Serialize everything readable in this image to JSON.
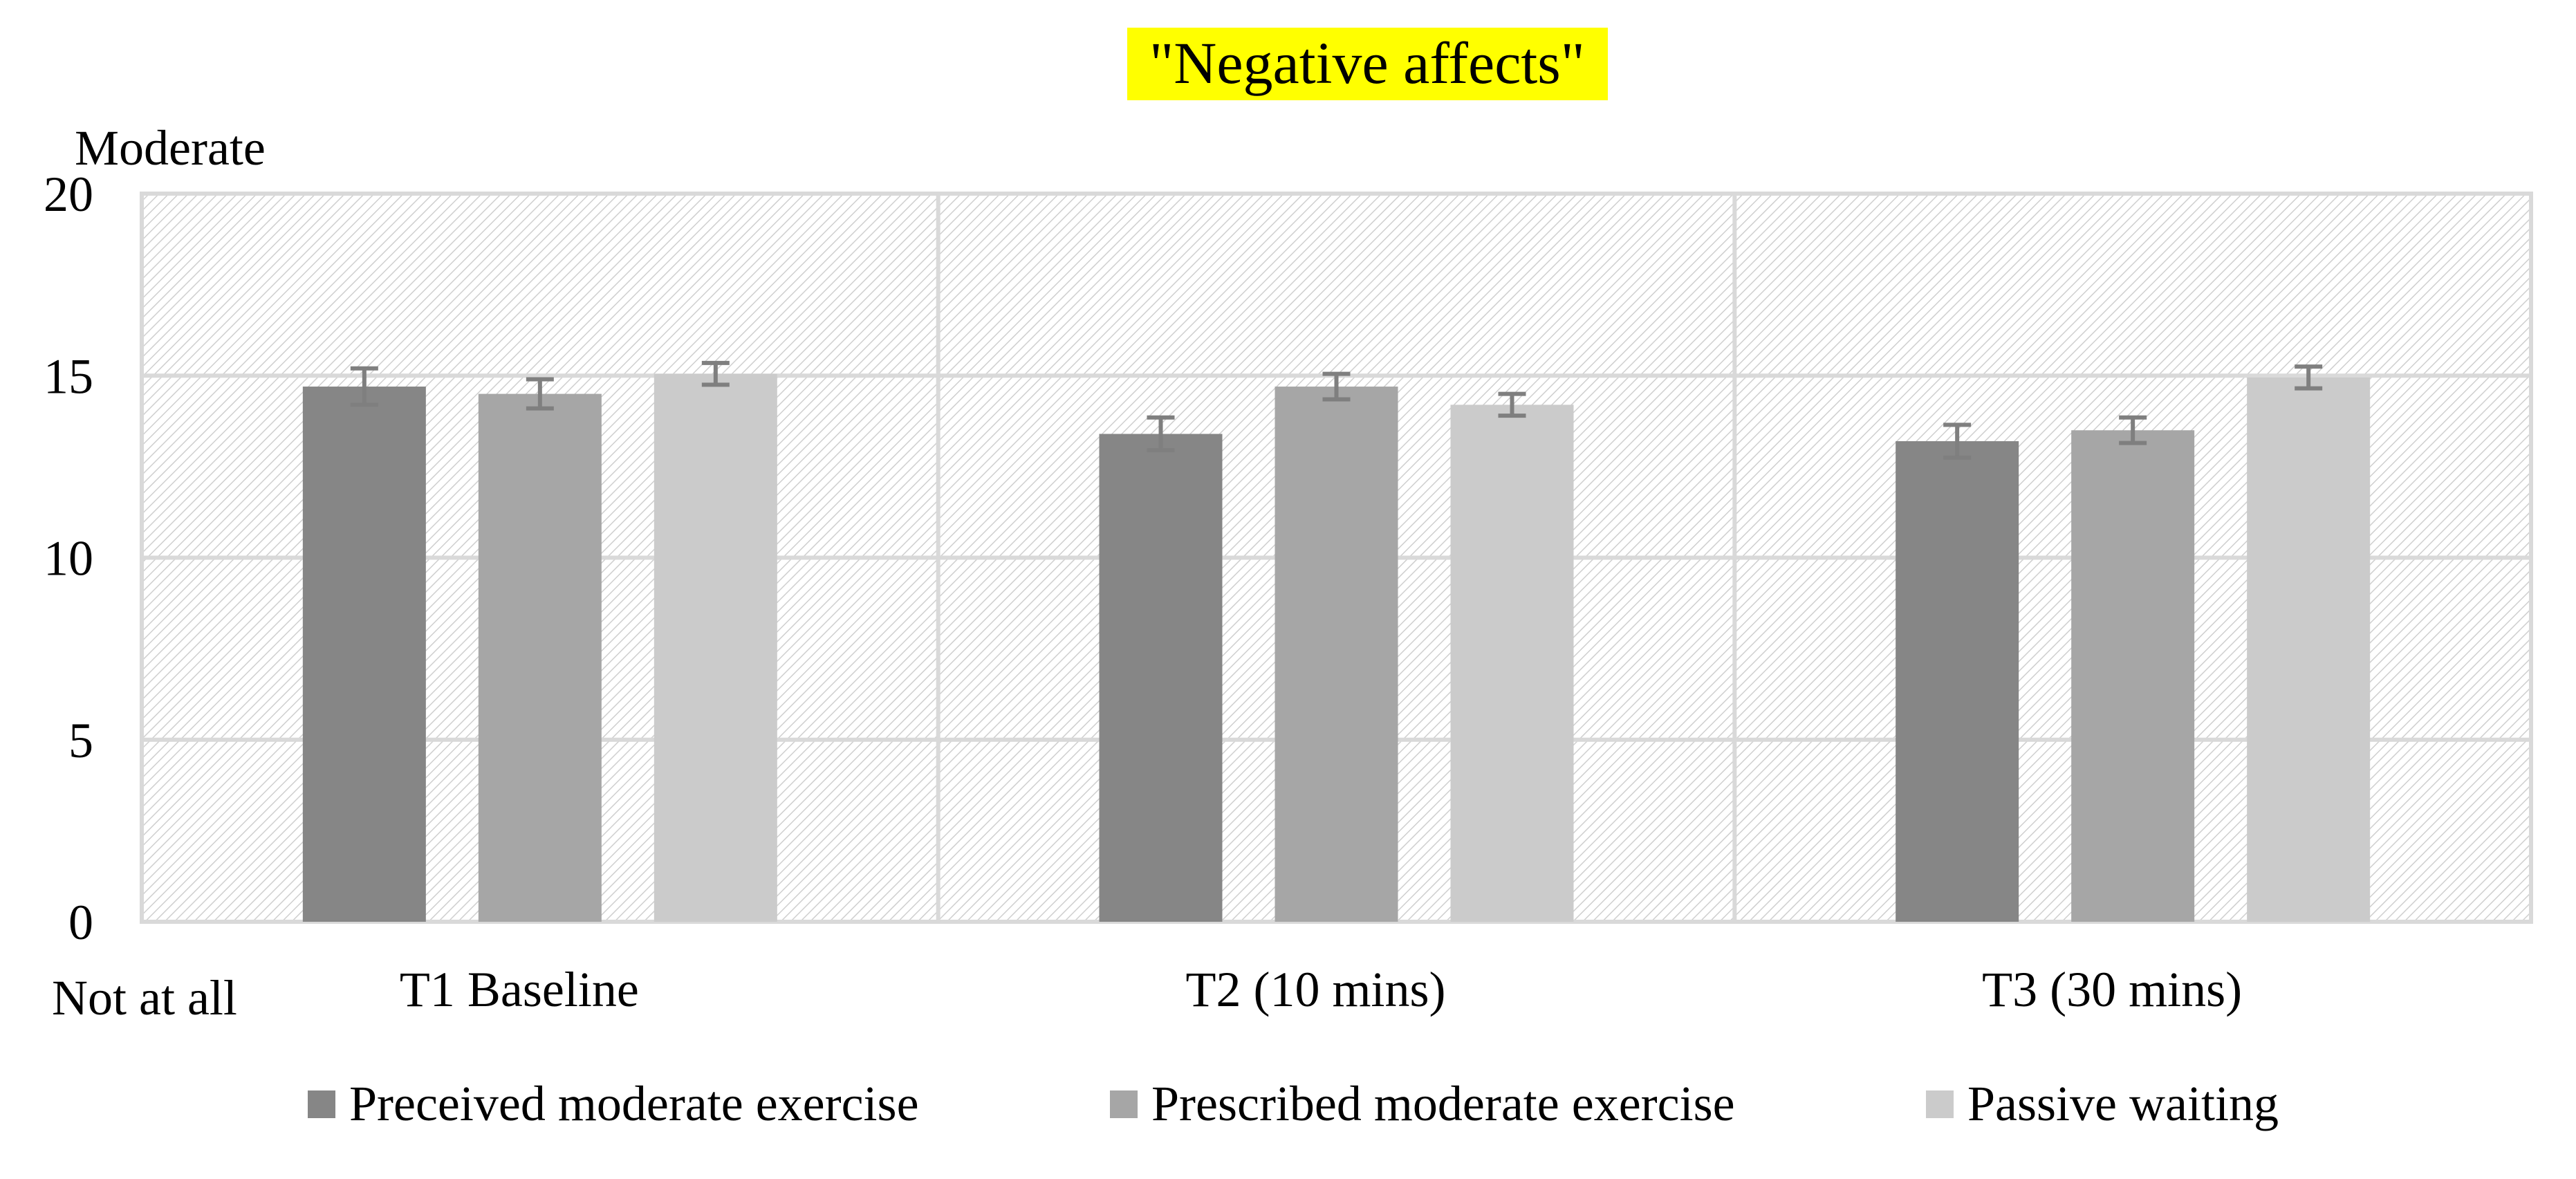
{
  "chart_data": {
    "type": "bar",
    "title": "\"Negative affects\"",
    "title_highlight_color": "#ffff00",
    "y_top_label": "Moderate",
    "y_bottom_label": "Not at all",
    "categories": [
      "T1 Baseline",
      "T2 (10 mins)",
      "T3 (30 mins)"
    ],
    "ylim": [
      0,
      20
    ],
    "yticks": [
      0,
      5,
      10,
      15,
      20
    ],
    "grid": true,
    "legend_position": "bottom",
    "series": [
      {
        "name": "Preceived moderate exercise",
        "color": "#868686",
        "values": [
          14.7,
          13.4,
          13.2
        ],
        "errors": [
          0.5,
          0.45,
          0.45
        ]
      },
      {
        "name": "Prescribed moderate exercise",
        "color": "#a6a6a6",
        "values": [
          14.5,
          14.7,
          13.5
        ],
        "errors": [
          0.4,
          0.35,
          0.35
        ]
      },
      {
        "name": "Passive waiting",
        "color": "#cbcbcb",
        "values": [
          15.05,
          14.2,
          14.95
        ],
        "errors": [
          0.3,
          0.3,
          0.3
        ]
      }
    ],
    "error_bar_color": "#7f7f7f",
    "gridline_color": "#d9d9d9"
  }
}
